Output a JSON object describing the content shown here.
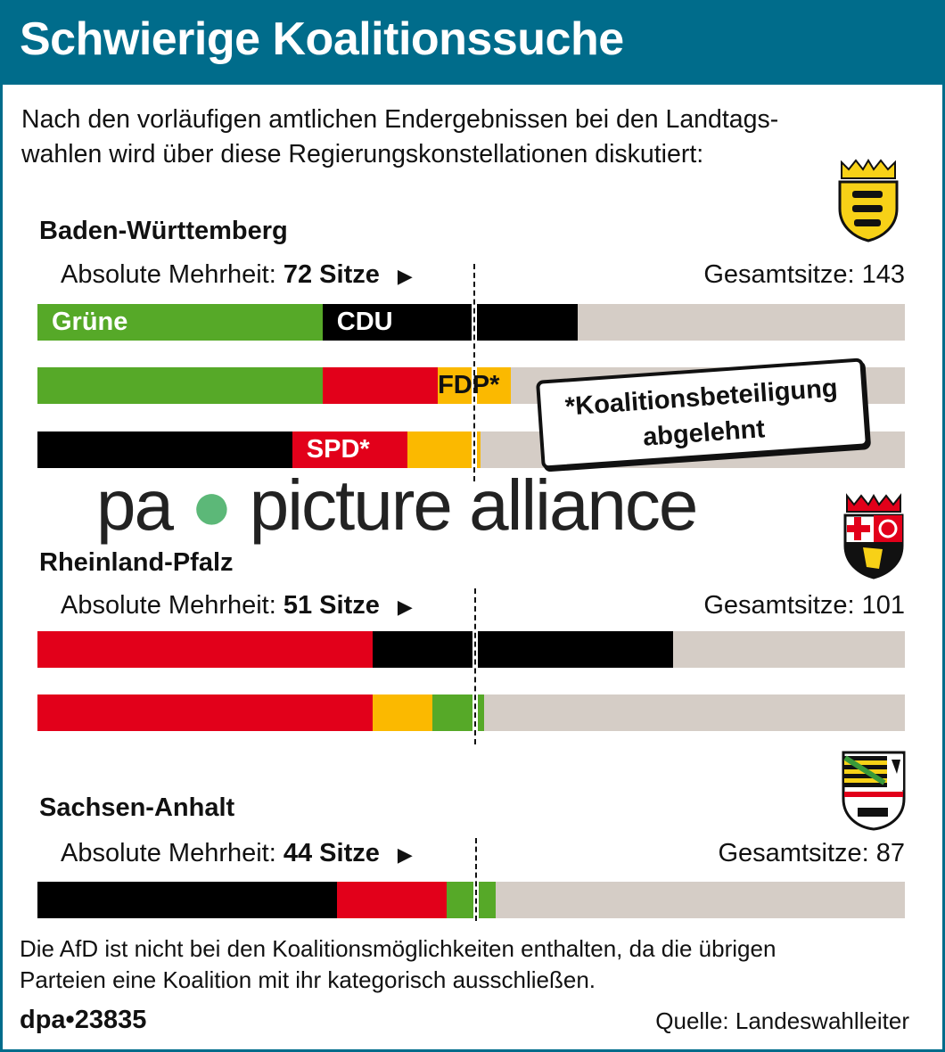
{
  "title": "Schwierige Koalitionssuche",
  "subtitle": [
    "Nach den vorläufigen amtlichen Endergebnissen bei den Landtags-",
    "wahlen wird über diese Regierungskonstellationen diskutiert:"
  ],
  "watermark": {
    "left": "pa",
    "right": "picture alliance"
  },
  "note": [
    "*Koalitionsbeteiligung",
    "abgelehnt"
  ],
  "colors": {
    "header": "#006c8b",
    "Grüne": "#56a928",
    "CDU": "#000000",
    "SPD": "#e2001a",
    "FDP": "#fbb900",
    "rest": "#d5cdc6"
  },
  "chart_data": {
    "type": "bar",
    "stacked": true,
    "unit": "Sitze",
    "states": [
      {
        "name": "Baden-Württemberg",
        "majority_label": "Absolute Mehrheit:",
        "majority": 72,
        "majority_unit": "Sitze",
        "total_label": "Gesamtsitze:",
        "total": 143,
        "coalitions": [
          [
            {
              "party": "Grüne",
              "seats": 47,
              "label": "Grüne"
            },
            {
              "party": "CDU",
              "seats": 42,
              "label": "CDU"
            }
          ],
          [
            {
              "party": "Grüne",
              "seats": 47,
              "label": ""
            },
            {
              "party": "SPD",
              "seats": 19,
              "label": ""
            },
            {
              "party": "FDP",
              "seats": 12,
              "label": "FDP*"
            }
          ],
          [
            {
              "party": "CDU",
              "seats": 42,
              "label": ""
            },
            {
              "party": "SPD",
              "seats": 19,
              "label": "SPD*"
            },
            {
              "party": "FDP",
              "seats": 12,
              "label": ""
            }
          ]
        ]
      },
      {
        "name": "Rheinland-Pfalz",
        "majority_label": "Absolute Mehrheit:",
        "majority": 51,
        "majority_unit": "Sitze",
        "total_label": "Gesamtsitze:",
        "total": 101,
        "coalitions": [
          [
            {
              "party": "SPD",
              "seats": 39,
              "label": ""
            },
            {
              "party": "CDU",
              "seats": 35,
              "label": ""
            }
          ],
          [
            {
              "party": "SPD",
              "seats": 39,
              "label": ""
            },
            {
              "party": "FDP",
              "seats": 7,
              "label": ""
            },
            {
              "party": "Grüne",
              "seats": 6,
              "label": ""
            }
          ]
        ]
      },
      {
        "name": "Sachsen-Anhalt",
        "majority_label": "Absolute Mehrheit:",
        "majority": 44,
        "majority_unit": "Sitze",
        "total_label": "Gesamtsitze:",
        "total": 87,
        "coalitions": [
          [
            {
              "party": "CDU",
              "seats": 30,
              "label": ""
            },
            {
              "party": "SPD",
              "seats": 11,
              "label": ""
            },
            {
              "party": "Grüne",
              "seats": 5,
              "label": ""
            }
          ]
        ]
      }
    ]
  },
  "footnote": [
    "Die AfD ist nicht bei den Koalitionsmöglichkeiten enthalten, da die übrigen",
    "Parteien eine Koalition mit ihr kategorisch ausschließen."
  ],
  "credit": "dpa•23835",
  "source": "Quelle: Landeswahlleiter"
}
